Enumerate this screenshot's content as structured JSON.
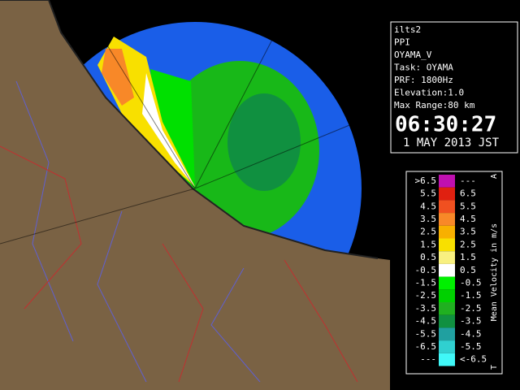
{
  "panel": {
    "lines": [
      "ilts2",
      "PPI",
      "OYAMA_V",
      "Task: OYAMA",
      "PRF: 1800Hz",
      "Elevation:1.0",
      "Max Range:80 km"
    ],
    "time": "06:30:27",
    "date": "1 MAY 2013 JST"
  },
  "legend": {
    "title": "Mean Velocity in m/s",
    "top_mark": "A",
    "bottom_mark": "T",
    "rows": [
      {
        "low": ">6.5",
        "high": "---",
        "color": "#c010b0"
      },
      {
        "low": "5.5",
        "high": "6.5",
        "color": "#e02010"
      },
      {
        "low": "4.5",
        "high": "5.5",
        "color": "#f05020"
      },
      {
        "low": "3.5",
        "high": "4.5",
        "color": "#f88828"
      },
      {
        "low": "2.5",
        "high": "3.5",
        "color": "#f8b000"
      },
      {
        "low": "1.5",
        "high": "2.5",
        "color": "#f8e000"
      },
      {
        "low": "0.5",
        "high": "1.5",
        "color": "#f8f080"
      },
      {
        "low": "-0.5",
        "high": "0.5",
        "color": "#ffffff"
      },
      {
        "low": "-1.5",
        "high": "-0.5",
        "color": "#00f000"
      },
      {
        "low": "-2.5",
        "high": "-1.5",
        "color": "#00d000"
      },
      {
        "low": "-3.5",
        "high": "-2.5",
        "color": "#20b020"
      },
      {
        "low": "-4.5",
        "high": "-3.5",
        "color": "#109040"
      },
      {
        "low": "-5.5",
        "high": "-4.5",
        "color": "#20a0a0"
      },
      {
        "low": "-6.5",
        "high": "-5.5",
        "color": "#30d0d0"
      },
      {
        "low": "---",
        "high": "<-6.5",
        "color": "#40f8f8"
      }
    ]
  }
}
